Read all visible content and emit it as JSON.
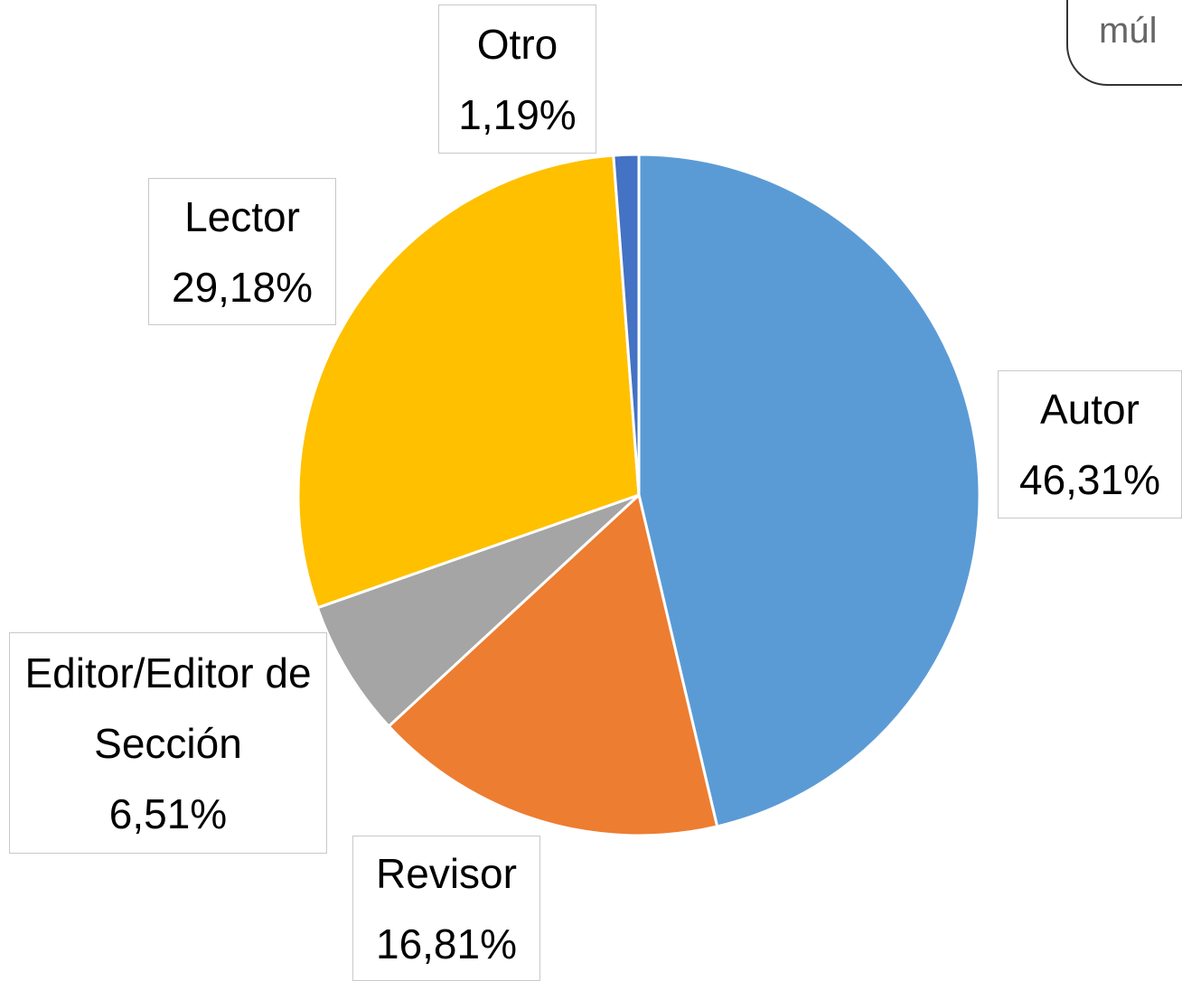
{
  "chart_data": {
    "type": "pie",
    "categories": [
      "Autor",
      "Revisor",
      "Editor/Editor de Sección",
      "Lector",
      "Otro"
    ],
    "values": [
      46.31,
      16.81,
      6.51,
      29.18,
      1.19
    ],
    "value_labels": [
      "46,31%",
      "16,81%",
      "6,51%",
      "29,18%",
      "1,19%"
    ],
    "colors": [
      "#5b9bd5",
      "#ed7d31",
      "#a5a5a5",
      "#ffc000",
      "#4472c4"
    ],
    "annotation": "múl"
  }
}
